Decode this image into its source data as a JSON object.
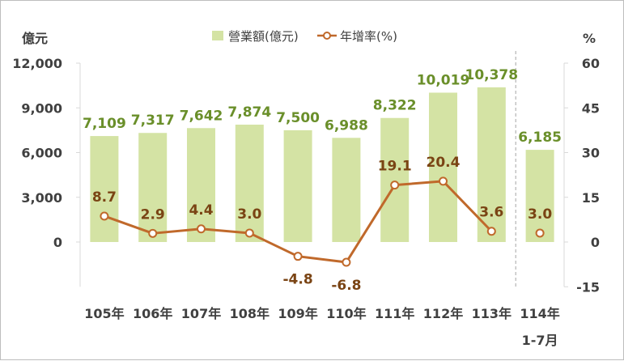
{
  "chart_data": {
    "type": "bar+line",
    "categories": [
      "105年",
      "106年",
      "107年",
      "108年",
      "109年",
      "110年",
      "111年",
      "112年",
      "113年",
      "114年"
    ],
    "category_sublabels": [
      "",
      "",
      "",
      "",
      "",
      "",
      "",
      "",
      "",
      "1-7月"
    ],
    "series": [
      {
        "name": "營業額(億元)",
        "type": "bar",
        "axis": "left",
        "color": "#d4e3a4",
        "label_color": "#6a8f2a",
        "values": [
          7109,
          7317,
          7642,
          7874,
          7500,
          6988,
          8322,
          10019,
          10378,
          6185
        ],
        "labels": [
          "7,109",
          "7,317",
          "7,642",
          "7,874",
          "7,500",
          "6,988",
          "8,322",
          "10,019",
          "10,378",
          "6,185"
        ]
      },
      {
        "name": "年增率(%)",
        "type": "line",
        "axis": "right",
        "color": "#c0692b",
        "label_color": "#7a4414",
        "values": [
          8.7,
          2.9,
          4.4,
          3.0,
          -4.8,
          -6.8,
          19.1,
          20.4,
          3.6,
          3.0
        ],
        "labels": [
          "8.7",
          "2.9",
          "4.4",
          "3.0",
          "-4.8",
          "-6.8",
          "19.1",
          "20.4",
          "3.6",
          "3.0"
        ],
        "connected_points": 9
      }
    ],
    "y_left": {
      "unit": "億元",
      "ticks": [
        0,
        3000,
        6000,
        9000,
        12000
      ],
      "tick_labels": [
        "0",
        "3,000",
        "6,000",
        "9,000",
        "12,000"
      ],
      "range": [
        -3000,
        12000
      ]
    },
    "y_right": {
      "unit": "%",
      "ticks": [
        -15,
        0,
        15,
        30,
        45,
        60
      ],
      "tick_labels": [
        "-15",
        "0",
        "15",
        "30",
        "45",
        "60"
      ],
      "range": [
        -15,
        60
      ]
    },
    "separator_before_category": "114年",
    "grid": false,
    "legend_position": "top"
  }
}
